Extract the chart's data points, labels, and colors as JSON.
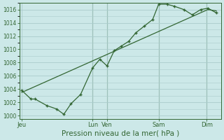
{
  "title": "Pression niveau de la mer( hPa )",
  "bg_color": "#cce8e8",
  "grid_color": "#aacccc",
  "line_color": "#336633",
  "ylim": [
    999.5,
    1017.0
  ],
  "yticks": [
    1000,
    1002,
    1004,
    1006,
    1008,
    1010,
    1012,
    1014,
    1016
  ],
  "x_day_labels": [
    "Jeu",
    "Lun",
    "Ven",
    "Sam",
    "Dim"
  ],
  "x_day_positions": [
    0.0,
    2.95,
    3.55,
    5.7,
    7.7
  ],
  "xlim": [
    -0.1,
    8.3
  ],
  "series_marked_x": [
    0.0,
    0.38,
    0.55,
    1.05,
    1.45,
    1.75,
    2.05,
    2.45,
    2.95,
    3.25,
    3.55,
    3.85,
    4.15,
    4.45,
    4.75,
    5.1,
    5.45,
    5.7,
    6.05,
    6.35,
    6.75,
    7.1,
    7.45,
    7.75,
    8.1
  ],
  "series_marked_y": [
    1003.8,
    1002.5,
    1002.5,
    1001.5,
    1001.0,
    1000.2,
    1001.8,
    1003.2,
    1007.2,
    1008.5,
    1007.5,
    1009.8,
    1010.5,
    1011.2,
    1012.5,
    1013.5,
    1014.5,
    1016.8,
    1016.8,
    1016.5,
    1016.0,
    1015.2,
    1016.0,
    1016.2,
    1015.5
  ],
  "series_line_x": [
    0.0,
    7.75,
    8.1
  ],
  "series_line_y": [
    1003.5,
    1016.0,
    1015.8
  ],
  "vline_positions": [
    2.95,
    3.55,
    5.7,
    7.7
  ]
}
